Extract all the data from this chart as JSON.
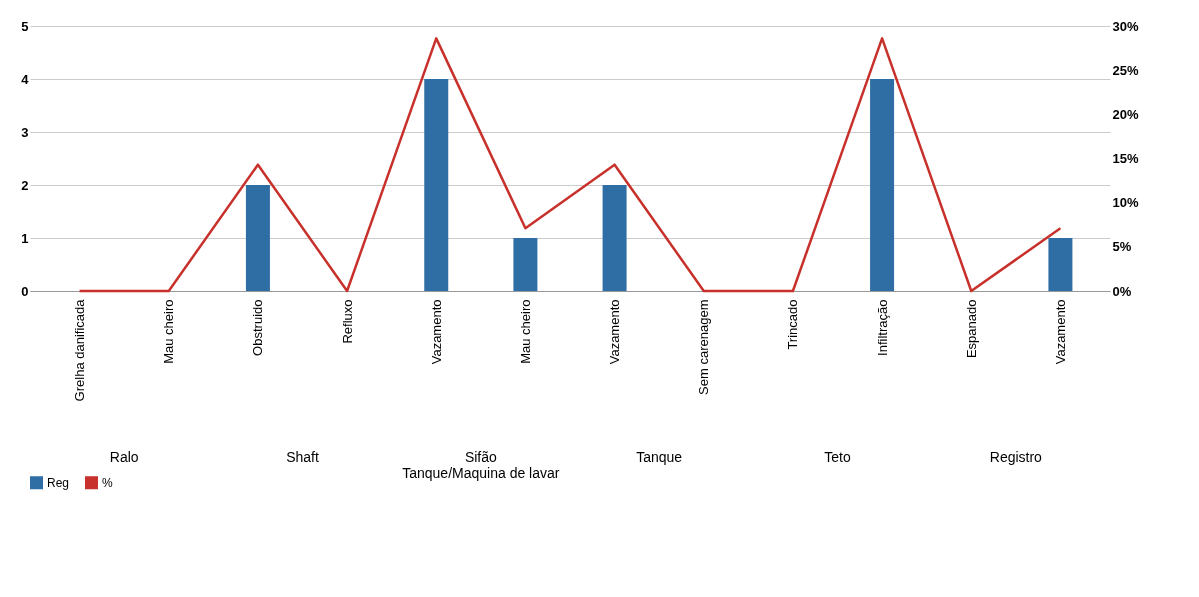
{
  "chart_data": {
    "type": "bar",
    "categories": [
      "Grelha danificada",
      "Mau cheiro",
      "Obstruido",
      "Refluxo",
      "Vazamento",
      "Mau cheiro",
      "Vazamento",
      "Sem carenagem",
      "Trincado",
      "Infiltração",
      "Espanado",
      "Vazamento"
    ],
    "series": [
      {
        "name": "Reg",
        "color": "#2f6ea5",
        "values": [
          0,
          0,
          2,
          0,
          4,
          1,
          2,
          0,
          0,
          4,
          0,
          1
        ]
      },
      {
        "name": "%",
        "type": "line",
        "axis": "y2",
        "color": "#c8312b",
        "values": [
          0,
          0,
          14.3,
          0,
          28.6,
          7.1,
          14.3,
          0,
          0,
          28.6,
          0,
          7.1
        ]
      }
    ],
    "ylim": [
      0,
      5
    ],
    "yticks": [
      0,
      1,
      2,
      3,
      4,
      5
    ],
    "y2lim": [
      0,
      30
    ],
    "y2ticks": [
      {
        "value": 0,
        "label": "0%"
      },
      {
        "value": 5,
        "label": "5%"
      },
      {
        "value": 10,
        "label": "10%"
      },
      {
        "value": 15,
        "label": "15%"
      },
      {
        "value": 20,
        "label": "20%"
      },
      {
        "value": 25,
        "label": "25%"
      },
      {
        "value": 30,
        "label": "30%"
      }
    ],
    "annotations": [
      "Ralo",
      "Shaft",
      "Sifão Tanque/Maquina de lavar",
      "Tanque",
      "Teto",
      "Registro"
    ],
    "grid": "y",
    "legend": "bottom"
  }
}
